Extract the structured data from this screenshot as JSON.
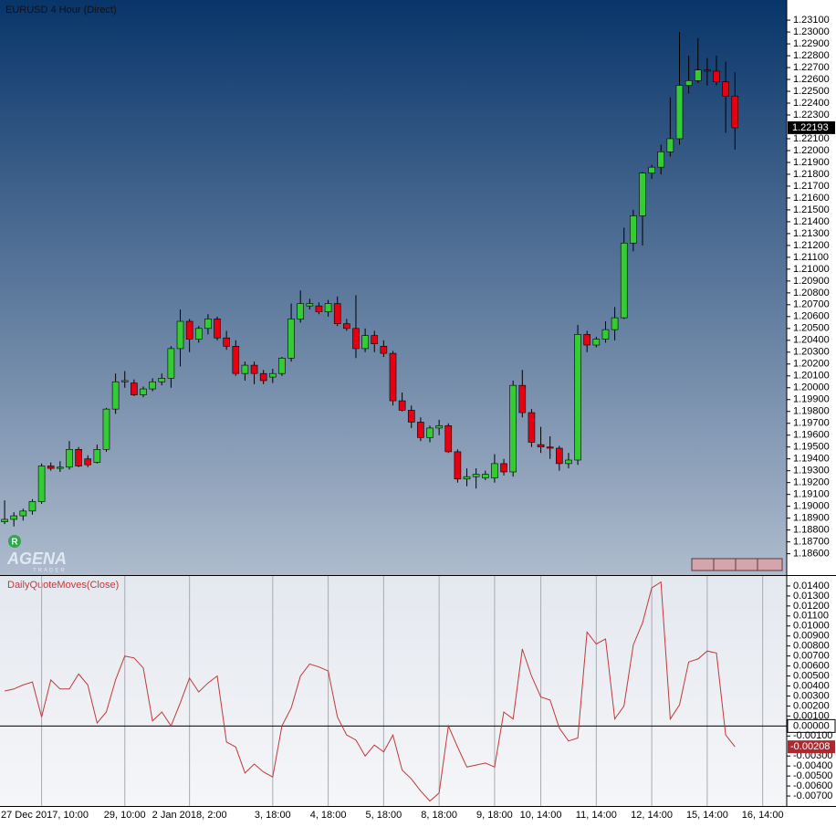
{
  "branding": {
    "badge": "R",
    "logo": "AGENA",
    "tagline": "TRADER"
  },
  "chart_data": [
    {
      "type": "candlestick",
      "title": "EURUSD 4 Hour (Direct)",
      "up_color": "#33cc33",
      "down_color": "#e60010",
      "xlim": [
        -0.5,
        84.6
      ],
      "xticks": [
        {
          "value": 4,
          "label": "27 Dec 2017, 10:00"
        },
        {
          "value": 13,
          "label": "29, 10:00"
        },
        {
          "value": 20,
          "label": "2 Jan 2018, 2:00"
        },
        {
          "value": 29,
          "label": "3, 18:00"
        },
        {
          "value": 35,
          "label": "4, 18:00"
        },
        {
          "value": 41,
          "label": "5, 18:00"
        },
        {
          "value": 47,
          "label": "8, 18:00"
        },
        {
          "value": 53,
          "label": "9, 18:00"
        },
        {
          "value": 58,
          "label": "10, 14:00"
        },
        {
          "value": 64,
          "label": "11, 14:00"
        },
        {
          "value": 70,
          "label": "12, 14:00"
        },
        {
          "value": 76,
          "label": "15, 14:00"
        },
        {
          "value": 82,
          "label": "16, 14:00"
        }
      ],
      "ylim": [
        1.1842,
        1.2327
      ],
      "yticks": [
        {
          "value": 1.231,
          "label": "1.23100"
        },
        {
          "value": 1.23,
          "label": "1.23000"
        },
        {
          "value": 1.229,
          "label": "1.22900"
        },
        {
          "value": 1.228,
          "label": "1.22800"
        },
        {
          "value": 1.227,
          "label": "1.22700"
        },
        {
          "value": 1.226,
          "label": "1.22600"
        },
        {
          "value": 1.225,
          "label": "1.22500"
        },
        {
          "value": 1.224,
          "label": "1.22400"
        },
        {
          "value": 1.223,
          "label": "1.22300"
        },
        {
          "value": 1.221,
          "label": "1.22100"
        },
        {
          "value": 1.22,
          "label": "1.22000"
        },
        {
          "value": 1.219,
          "label": "1.21900"
        },
        {
          "value": 1.218,
          "label": "1.21800"
        },
        {
          "value": 1.217,
          "label": "1.21700"
        },
        {
          "value": 1.216,
          "label": "1.21600"
        },
        {
          "value": 1.215,
          "label": "1.21500"
        },
        {
          "value": 1.214,
          "label": "1.21400"
        },
        {
          "value": 1.213,
          "label": "1.21300"
        },
        {
          "value": 1.212,
          "label": "1.21200"
        },
        {
          "value": 1.211,
          "label": "1.21100"
        },
        {
          "value": 1.21,
          "label": "1.21000"
        },
        {
          "value": 1.209,
          "label": "1.20900"
        },
        {
          "value": 1.208,
          "label": "1.20800"
        },
        {
          "value": 1.207,
          "label": "1.20700"
        },
        {
          "value": 1.206,
          "label": "1.20600"
        },
        {
          "value": 1.205,
          "label": "1.20500"
        },
        {
          "value": 1.204,
          "label": "1.20400"
        },
        {
          "value": 1.203,
          "label": "1.20300"
        },
        {
          "value": 1.202,
          "label": "1.20200"
        },
        {
          "value": 1.201,
          "label": "1.20100"
        },
        {
          "value": 1.2,
          "label": "1.20000"
        },
        {
          "value": 1.199,
          "label": "1.19900"
        },
        {
          "value": 1.198,
          "label": "1.19800"
        },
        {
          "value": 1.197,
          "label": "1.19700"
        },
        {
          "value": 1.196,
          "label": "1.19600"
        },
        {
          "value": 1.195,
          "label": "1.19500"
        },
        {
          "value": 1.194,
          "label": "1.19400"
        },
        {
          "value": 1.193,
          "label": "1.19300"
        },
        {
          "value": 1.192,
          "label": "1.19200"
        },
        {
          "value": 1.191,
          "label": "1.19100"
        },
        {
          "value": 1.19,
          "label": "1.19000"
        },
        {
          "value": 1.189,
          "label": "1.18900"
        },
        {
          "value": 1.188,
          "label": "1.18800"
        },
        {
          "value": 1.187,
          "label": "1.18700"
        },
        {
          "value": 1.186,
          "label": "1.18600"
        }
      ],
      "open": [
        1.1887,
        1.1889,
        1.1892,
        1.1896,
        1.1904,
        1.1934,
        1.1932,
        1.1933,
        1.1948,
        1.194,
        1.1937,
        1.1948,
        1.1982,
        1.2005,
        1.2004,
        1.1994,
        1.1999,
        1.2005,
        1.2008,
        1.2033,
        1.2056,
        1.2041,
        1.205,
        1.2058,
        1.2042,
        1.2035,
        1.2012,
        1.2019,
        1.2012,
        1.2009,
        1.2012,
        1.2025,
        1.2058,
        1.2069,
        1.2069,
        1.2064,
        1.2071,
        1.2054,
        1.205,
        1.2033,
        1.2044,
        1.2035,
        1.2029,
        1.1989,
        1.1981,
        1.1971,
        1.1958,
        1.1966,
        1.1968,
        1.1946,
        1.1923,
        1.1925,
        1.1924,
        1.1924,
        1.1936,
        1.1929,
        1.2002,
        1.1979,
        1.1952,
        1.195,
        1.1949,
        1.1936,
        1.1939,
        1.2045,
        1.2036,
        1.2041,
        1.2049,
        1.2059,
        1.2122,
        1.2145,
        1.2181,
        1.2186,
        1.2199,
        1.221,
        1.2255,
        1.2259,
        1.2268,
        1.2267,
        1.2258,
        1.2246
      ],
      "high": [
        1.1905,
        1.1895,
        1.1898,
        1.1906,
        1.1936,
        1.1937,
        1.1938,
        1.1955,
        1.195,
        1.1943,
        1.1952,
        1.1983,
        1.2012,
        1.2014,
        1.2007,
        1.2001,
        1.2008,
        1.2012,
        1.2035,
        1.2066,
        1.2058,
        1.2052,
        1.2062,
        1.206,
        1.2048,
        1.204,
        1.2022,
        1.2022,
        1.2015,
        1.2016,
        1.2026,
        1.2071,
        1.2082,
        1.2075,
        1.2072,
        1.2074,
        1.2077,
        1.2058,
        1.2078,
        1.205,
        1.2048,
        1.204,
        1.2031,
        1.1996,
        1.1985,
        1.1975,
        1.1968,
        1.1973,
        1.197,
        1.1948,
        1.1932,
        1.1932,
        1.193,
        1.1944,
        1.194,
        1.2006,
        1.2015,
        1.1982,
        1.1967,
        1.1959,
        1.1951,
        1.1945,
        1.2053,
        1.2048,
        1.2043,
        1.2056,
        1.2068,
        1.2135,
        1.215,
        1.2182,
        1.2188,
        1.2205,
        1.2245,
        1.23,
        1.228,
        1.2295,
        1.2278,
        1.228,
        1.2275,
        1.2266
      ],
      "low": [
        1.1885,
        1.1883,
        1.1888,
        1.1893,
        1.1902,
        1.193,
        1.1929,
        1.1931,
        1.1933,
        1.1933,
        1.1936,
        1.1946,
        1.1978,
        1.2,
        1.1993,
        1.1992,
        1.1997,
        1.2002,
        1.2,
        1.2018,
        1.203,
        1.2038,
        1.2045,
        1.204,
        1.2032,
        1.201,
        1.2006,
        1.2003,
        1.2003,
        1.2004,
        1.201,
        1.2022,
        1.2055,
        1.2066,
        1.2062,
        1.206,
        1.2052,
        1.2048,
        1.2025,
        1.203,
        1.203,
        1.2026,
        1.1985,
        1.198,
        1.1966,
        1.1955,
        1.1954,
        1.196,
        1.1945,
        1.192,
        1.1917,
        1.1915,
        1.1922,
        1.192,
        1.1926,
        1.1925,
        1.1975,
        1.195,
        1.1945,
        1.194,
        1.193,
        1.1932,
        1.1935,
        1.203,
        1.2034,
        1.2038,
        1.204,
        1.2058,
        1.2115,
        1.212,
        1.2176,
        1.218,
        1.2195,
        1.2205,
        1.2248,
        1.2257,
        1.2255,
        1.2255,
        1.2215,
        1.2201
      ],
      "close": [
        1.1889,
        1.1892,
        1.1896,
        1.1904,
        1.1934,
        1.1932,
        1.1933,
        1.1948,
        1.1934,
        1.1935,
        1.1948,
        1.1982,
        1.2005,
        1.2006,
        1.1994,
        1.1999,
        1.2005,
        1.2008,
        1.2033,
        1.2056,
        1.2041,
        1.205,
        1.2058,
        1.2042,
        1.2035,
        1.2012,
        1.2019,
        1.2012,
        1.2006,
        1.2012,
        1.2025,
        1.2058,
        1.2071,
        1.2071,
        1.2064,
        1.2071,
        1.2054,
        1.205,
        1.2033,
        1.2044,
        1.2037,
        1.2029,
        1.1989,
        1.1981,
        1.1971,
        1.1958,
        1.1966,
        1.1968,
        1.1946,
        1.1923,
        1.1925,
        1.1927,
        1.1927,
        1.1936,
        1.1929,
        1.2002,
        1.1979,
        1.1954,
        1.195,
        1.1949,
        1.1936,
        1.1939,
        1.2045,
        1.2036,
        1.2041,
        1.2049,
        1.2059,
        1.2122,
        1.2145,
        1.2181,
        1.2186,
        1.2199,
        1.221,
        1.2255,
        1.2259,
        1.2268,
        1.2267,
        1.2258,
        1.2246,
        1.22193
      ]
    },
    {
      "type": "line",
      "title": "DailyQuoteMoves(Close)",
      "color": "#c0393b",
      "xgrid": true,
      "zero_line": true,
      "ylim": [
        -0.008,
        0.015
      ],
      "yticks": [
        {
          "value": 0.014,
          "label": "0.01400"
        },
        {
          "value": 0.013,
          "label": "0.01300"
        },
        {
          "value": 0.012,
          "label": "0.01200"
        },
        {
          "value": 0.011,
          "label": "0.01100"
        },
        {
          "value": 0.01,
          "label": "0.01000"
        },
        {
          "value": 0.009,
          "label": "0.00900"
        },
        {
          "value": 0.008,
          "label": "0.00800"
        },
        {
          "value": 0.007,
          "label": "0.00700"
        },
        {
          "value": 0.006,
          "label": "0.00600"
        },
        {
          "value": 0.005,
          "label": "0.00500"
        },
        {
          "value": 0.004,
          "label": "0.00400"
        },
        {
          "value": 0.003,
          "label": "0.00300"
        },
        {
          "value": 0.002,
          "label": "0.00200"
        },
        {
          "value": 0.001,
          "label": "0.00100"
        },
        {
          "value": 0,
          "label": "0.00000"
        },
        {
          "value": -0.001,
          "label": "-0.00100"
        },
        {
          "value": -0.003,
          "label": "-0.00300"
        },
        {
          "value": -0.004,
          "label": "-0.00400"
        },
        {
          "value": -0.005,
          "label": "-0.00500"
        },
        {
          "value": -0.006,
          "label": "-0.00600"
        },
        {
          "value": -0.007,
          "label": "-0.00700"
        }
      ],
      "values": [
        0.0035,
        0.0037,
        0.0041,
        0.0044,
        0.0009,
        0.0046,
        0.0037,
        0.0037,
        0.0052,
        0.0041,
        0.0003,
        0.0014,
        0.0046,
        0.007,
        0.0068,
        0.0058,
        0.0005,
        0.0014,
        0.0,
        0.0023,
        0.0048,
        0.0034,
        0.0043,
        0.005,
        -0.0016,
        -0.0021,
        -0.0047,
        -0.0038,
        -0.0046,
        -0.0051,
        0.0,
        0.0018,
        0.005,
        0.0062,
        0.0059,
        0.0055,
        0.0009,
        -0.0009,
        -0.0014,
        -0.003,
        -0.0019,
        -0.0026,
        -0.0009,
        -0.0044,
        -0.0053,
        -0.0065,
        -0.0075,
        -0.0067,
        0.0,
        -0.0021,
        -0.0041,
        -0.0039,
        -0.0037,
        -0.0041,
        0.0014,
        0.0007,
        0.0077,
        0.005,
        0.0029,
        0.0026,
        -0.0002,
        -0.0015,
        -0.0012,
        0.0094,
        0.0082,
        0.0087,
        0.0007,
        0.002,
        0.0081,
        0.0103,
        0.0138,
        0.0144,
        0.0007,
        0.0021,
        0.0064,
        0.0067,
        0.0075,
        0.0073,
        -0.0009,
        -0.00208
      ]
    }
  ]
}
